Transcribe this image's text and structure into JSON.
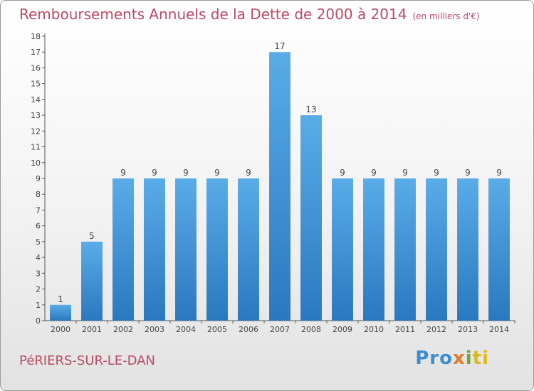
{
  "header": {
    "title": "Remboursements Annuels de la Dette de 2000 à 2014",
    "unit": "(en milliers d'€)"
  },
  "footer": {
    "commune": "PéRIERS-SUR-LE-DAN",
    "logo": {
      "p1": "Pro",
      "p2": "x",
      "p3": "i",
      "p4": "ti"
    }
  },
  "colors": {
    "bar_light": "#5aace8",
    "bar_dark": "#2a78bf",
    "title": "#b94a65"
  },
  "chart_data": {
    "type": "bar",
    "categories": [
      "2000",
      "2001",
      "2002",
      "2003",
      "2004",
      "2005",
      "2006",
      "2007",
      "2008",
      "2009",
      "2010",
      "2011",
      "2012",
      "2013",
      "2014"
    ],
    "values": [
      1,
      5,
      9,
      9,
      9,
      9,
      9,
      17,
      13,
      9,
      9,
      9,
      9,
      9,
      9
    ],
    "title": "Remboursements Annuels de la Dette de 2000 à 2014",
    "xlabel": "",
    "ylabel": "",
    "ylim": [
      0,
      18
    ],
    "yticks": [
      0,
      1,
      2,
      3,
      4,
      5,
      6,
      7,
      8,
      9,
      10,
      11,
      12,
      13,
      14,
      15,
      16,
      17,
      18
    ],
    "grid": false,
    "data_labels": true
  }
}
